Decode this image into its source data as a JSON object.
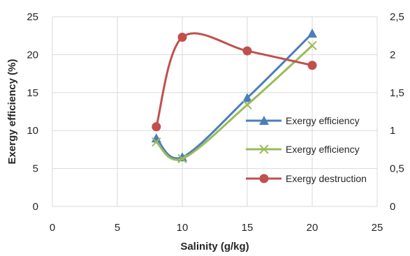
{
  "chart_data": {
    "type": "line",
    "xlabel": "Salinity (g/kg)",
    "ylabel": "Exergy efficiency (%)",
    "xlim": [
      0,
      25
    ],
    "ylim": [
      0,
      25
    ],
    "y2lim": [
      0,
      2.5
    ],
    "x_ticks": [
      "0",
      "5",
      "10",
      "15",
      "20",
      "25"
    ],
    "y_ticks": [
      "0",
      "5",
      "10",
      "15",
      "20",
      "25"
    ],
    "y2_ticks": [
      "0",
      "0,5",
      "1",
      "1,5",
      "2",
      "2,5"
    ],
    "grid": true,
    "legend_position": "right",
    "x": [
      8,
      10,
      15,
      20
    ],
    "series": [
      {
        "name": "Exergy efficiency",
        "axis": "left",
        "marker": "triangle",
        "color": "#4a7ebb",
        "values": [
          9.0,
          6.5,
          14.3,
          22.8
        ]
      },
      {
        "name": "Exergy efficiency",
        "axis": "left",
        "marker": "cross",
        "color": "#9bbb59",
        "values": [
          8.5,
          6.3,
          13.4,
          21.2
        ]
      },
      {
        "name": "Exergy destruction",
        "axis": "right",
        "marker": "circle",
        "color": "#c0504d",
        "values": [
          1.05,
          2.23,
          2.05,
          1.86
        ]
      }
    ]
  }
}
